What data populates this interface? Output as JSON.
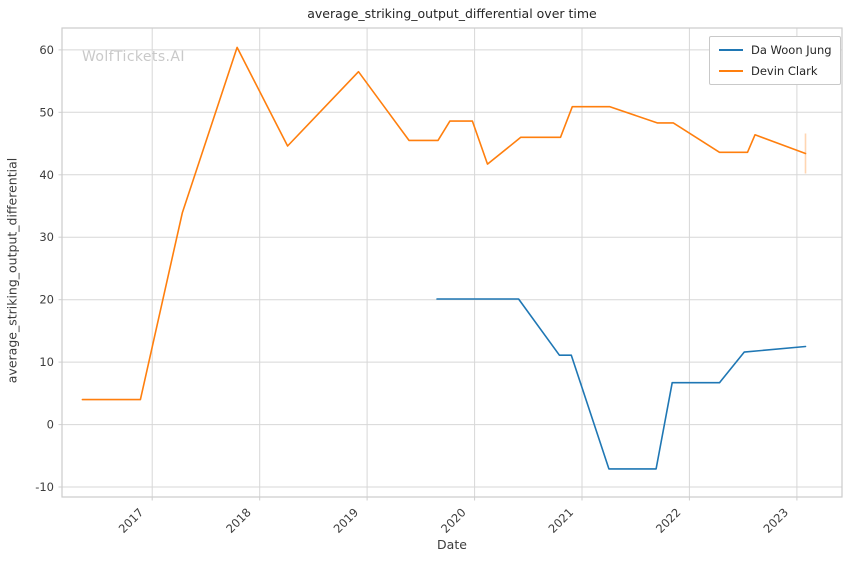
{
  "chart_data": {
    "type": "line",
    "title": "average_striking_output_differential over time",
    "xlabel": "Date",
    "ylabel": "average_striking_output_differential",
    "watermark": "WolfTickets.AI",
    "grid": true,
    "legend_position": "top-right",
    "xlim": [
      2016.16,
      2023.42
    ],
    "ylim": [
      -11.6,
      63.5
    ],
    "xticks": [
      2017,
      2018,
      2019,
      2020,
      2021,
      2022,
      2023
    ],
    "yticks": [
      -10,
      0,
      10,
      20,
      30,
      40,
      50,
      60
    ],
    "colors": {
      "blue_series": "#1f77b4",
      "orange_series": "#ff7f0e",
      "gridline": "#d7d7d7",
      "frame": "#cccccc",
      "tick_text": "#3d3d3d",
      "title_text": "#262626",
      "watermark_text": "#c9c9c9"
    },
    "series": [
      {
        "name": "Da Woon Jung",
        "color": "#1f77b4",
        "x": [
          2019.65,
          2020.41,
          2020.79,
          2020.9,
          2021.25,
          2021.69,
          2021.84,
          2022.28,
          2022.51,
          2023.08
        ],
        "y": [
          20.1,
          20.1,
          11.1,
          11.1,
          -7.1,
          -7.1,
          6.7,
          6.7,
          11.6,
          12.5
        ]
      },
      {
        "name": "Devin Clark",
        "color": "#ff7f0e",
        "x": [
          2016.35,
          2016.89,
          2017.28,
          2017.79,
          2018.26,
          2018.92,
          2019.39,
          2019.66,
          2019.77,
          2019.98,
          2020.12,
          2020.43,
          2020.8,
          2020.91,
          2021.26,
          2021.7,
          2021.85,
          2022.28,
          2022.54,
          2022.61,
          2023.08
        ],
        "y": [
          4.0,
          4.0,
          33.9,
          60.4,
          44.6,
          56.5,
          45.5,
          45.5,
          48.6,
          48.6,
          41.7,
          46.0,
          46.0,
          50.9,
          50.9,
          48.3,
          48.3,
          43.6,
          43.6,
          46.4,
          43.4
        ],
        "error_bar_last": {
          "x": 2023.08,
          "y_low": 40.2,
          "y_high": 46.6
        }
      }
    ]
  }
}
